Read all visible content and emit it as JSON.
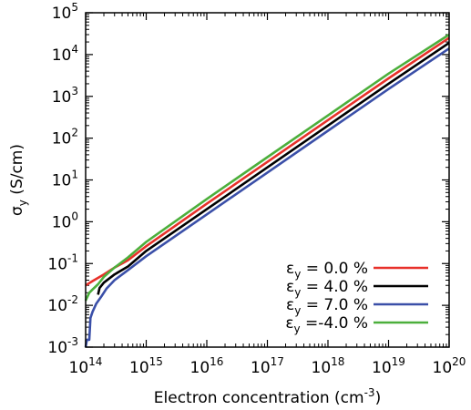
{
  "chart_data": {
    "type": "line",
    "xscale": "log",
    "yscale": "log",
    "xlim": [
      100000000000000.0,
      1e+20
    ],
    "ylim": [
      0.001,
      100000.0
    ],
    "grid": false,
    "legend_position": "bottom-right",
    "xlabel": {
      "main": "Electron concentration (cm",
      "sup": "-3",
      "end": ")"
    },
    "ylabel": {
      "main": "σ",
      "sub": "y",
      "end": " (S/cm)"
    },
    "x_ticks": [
      {
        "value": 100000000000000.0,
        "base": "10",
        "exp": "14"
      },
      {
        "value": 1000000000000000.0,
        "base": "10",
        "exp": "15"
      },
      {
        "value": 1e+16,
        "base": "10",
        "exp": "16"
      },
      {
        "value": 1e+17,
        "base": "10",
        "exp": "17"
      },
      {
        "value": 1e+18,
        "base": "10",
        "exp": "18"
      },
      {
        "value": 1e+19,
        "base": "10",
        "exp": "19"
      },
      {
        "value": 1e+20,
        "base": "10",
        "exp": "20"
      }
    ],
    "y_ticks": [
      {
        "value": 0.001,
        "base": "10",
        "exp": "-3"
      },
      {
        "value": 0.01,
        "base": "10",
        "exp": "-2"
      },
      {
        "value": 0.1,
        "base": "10",
        "exp": "-1"
      },
      {
        "value": 1.0,
        "base": "10",
        "exp": "0"
      },
      {
        "value": 10.0,
        "base": "10",
        "exp": "1"
      },
      {
        "value": 100.0,
        "base": "10",
        "exp": "2"
      },
      {
        "value": 1000.0,
        "base": "10",
        "exp": "3"
      },
      {
        "value": 10000.0,
        "base": "10",
        "exp": "4"
      },
      {
        "value": 100000.0,
        "base": "10",
        "exp": "5"
      }
    ],
    "series": [
      {
        "name": {
          "sym": "ε",
          "sub": "y",
          "rest": " = 0.0 %"
        },
        "color": "#e8312a",
        "x": [
          100000000000000.0,
          130000000000000.0,
          200000000000000.0,
          300000000000000.0,
          500000000000000.0,
          1000000000000000.0,
          1e+16,
          1e+17,
          1e+18,
          1e+19,
          1e+20
        ],
        "y": [
          0.03,
          0.038,
          0.055,
          0.08,
          0.12,
          0.26,
          2.7,
          27,
          270,
          2700,
          25000
        ]
      },
      {
        "name": {
          "sym": "ε",
          "sub": "y",
          "rest": " = 4.0 %"
        },
        "color": "#000000",
        "x": [
          160000000000000.0,
          170000000000000.0,
          200000000000000.0,
          300000000000000.0,
          500000000000000.0,
          1000000000000000.0,
          1e+16,
          1e+17,
          1e+18,
          1e+19,
          1e+20
        ],
        "y": [
          0.018,
          0.026,
          0.035,
          0.055,
          0.085,
          0.2,
          2.0,
          20,
          200,
          2000,
          19000
        ]
      },
      {
        "name": {
          "sym": "ε",
          "sub": "y",
          "rest": " = 7.0 %"
        },
        "color": "#3a4fa8",
        "x": [
          100000000000000.0,
          105000000000000.0,
          115000000000000.0,
          120000000000000.0,
          130000000000000.0,
          150000000000000.0,
          180000000000000.0,
          220000000000000.0,
          300000000000000.0,
          500000000000000.0,
          1000000000000000.0,
          1e+16,
          1e+17,
          1e+18,
          1e+19,
          1e+20
        ],
        "y": [
          0.001,
          0.0015,
          0.0015,
          0.005,
          0.007,
          0.011,
          0.016,
          0.025,
          0.04,
          0.07,
          0.15,
          1.5,
          15,
          150,
          1500,
          14000
        ]
      },
      {
        "name": {
          "sym": "ε",
          "sub": "y",
          "rest": " =-4.0 %"
        },
        "color": "#4caf3c",
        "x": [
          100000000000000.0,
          115000000000000.0,
          130000000000000.0,
          160000000000000.0,
          200000000000000.0,
          300000000000000.0,
          500000000000000.0,
          1000000000000000.0,
          1e+16,
          1e+17,
          1e+18,
          1e+19,
          1e+20
        ],
        "y": [
          0.013,
          0.02,
          0.024,
          0.032,
          0.048,
          0.08,
          0.14,
          0.33,
          3.5,
          35,
          350,
          3500,
          30000
        ]
      }
    ]
  }
}
